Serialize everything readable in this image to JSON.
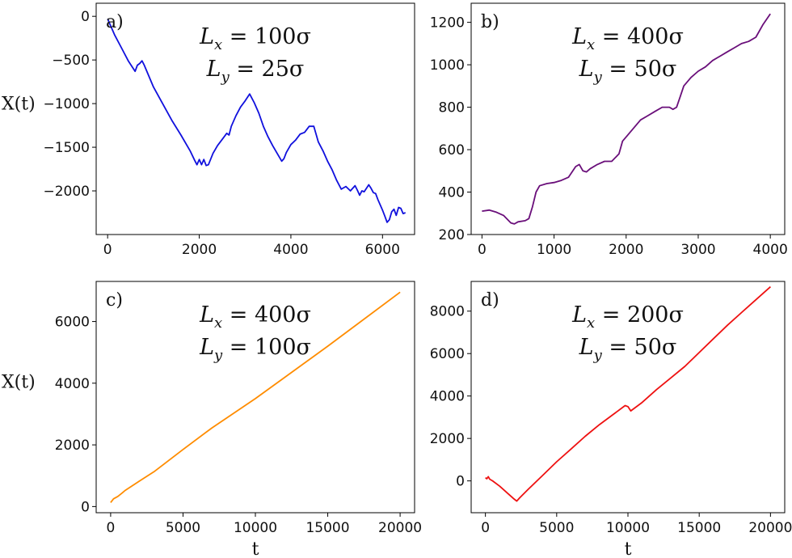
{
  "chart_data": [
    {
      "type": "line",
      "panel_label": "a)",
      "annotation": [
        "Lx = 100σ",
        "Ly = 25σ"
      ],
      "ylabel": "X(t)",
      "xlabel": "",
      "xlim": [
        -250,
        6700
      ],
      "ylim": [
        -2500,
        150
      ],
      "xticks": [
        0,
        2000,
        4000,
        6000
      ],
      "yticks": [
        0,
        -500,
        -1000,
        -1500,
        -2000
      ],
      "grid": false,
      "color": "#1010dd",
      "series": [
        {
          "x": [
            0,
            150,
            300,
            450,
            600,
            650,
            700,
            750,
            800,
            1000,
            1200,
            1400,
            1600,
            1800,
            1900,
            1950,
            2000,
            2050,
            2100,
            2150,
            2200,
            2300,
            2400,
            2500,
            2600,
            2650,
            2700,
            2800,
            2900,
            3000,
            3100,
            3200,
            3300,
            3400,
            3500,
            3600,
            3700,
            3800,
            3850,
            3900,
            4000,
            4100,
            4200,
            4300,
            4400,
            4500,
            4550,
            4600,
            4700,
            4800,
            4900,
            5000,
            5100,
            5200,
            5300,
            5400,
            5450,
            5500,
            5550,
            5600,
            5700,
            5750,
            5800,
            5850,
            5900,
            6000,
            6050,
            6100,
            6150,
            6200,
            6250,
            6300,
            6350,
            6400,
            6450,
            6500
          ],
          "y": [
            -30,
            -210,
            -360,
            -510,
            -630,
            -560,
            -540,
            -510,
            -560,
            -810,
            -1000,
            -1190,
            -1360,
            -1540,
            -1650,
            -1700,
            -1640,
            -1700,
            -1640,
            -1710,
            -1700,
            -1570,
            -1480,
            -1410,
            -1340,
            -1360,
            -1260,
            -1140,
            -1040,
            -970,
            -890,
            -990,
            -1110,
            -1260,
            -1380,
            -1480,
            -1570,
            -1660,
            -1630,
            -1560,
            -1470,
            -1420,
            -1350,
            -1330,
            -1260,
            -1260,
            -1350,
            -1440,
            -1540,
            -1660,
            -1760,
            -1880,
            -1980,
            -1950,
            -2000,
            -1940,
            -1990,
            -2050,
            -2000,
            -2010,
            -1930,
            -1970,
            -2020,
            -2030,
            -2100,
            -2220,
            -2290,
            -2360,
            -2330,
            -2240,
            -2210,
            -2280,
            -2190,
            -2200,
            -2260,
            -2250
          ]
        }
      ]
    },
    {
      "type": "line",
      "panel_label": "b)",
      "annotation": [
        "Lx = 400σ",
        "Ly = 50σ"
      ],
      "ylabel": "",
      "xlabel": "",
      "xlim": [
        -150,
        4200
      ],
      "ylim": [
        200,
        1290
      ],
      "xticks": [
        0,
        1000,
        2000,
        3000,
        4000
      ],
      "yticks": [
        200,
        400,
        600,
        800,
        1000,
        1200
      ],
      "grid": false,
      "color": "#6a0f7a",
      "series": [
        {
          "x": [
            0,
            100,
            200,
            300,
            400,
            450,
            500,
            600,
            650,
            700,
            750,
            800,
            900,
            1000,
            1100,
            1200,
            1300,
            1350,
            1400,
            1450,
            1500,
            1600,
            1700,
            1800,
            1900,
            1950,
            2000,
            2100,
            2200,
            2300,
            2400,
            2500,
            2600,
            2650,
            2700,
            2750,
            2800,
            2900,
            3000,
            3100,
            3200,
            3300,
            3400,
            3500,
            3600,
            3700,
            3800,
            3900,
            4000
          ],
          "y": [
            310,
            315,
            305,
            290,
            255,
            250,
            260,
            265,
            275,
            330,
            400,
            430,
            440,
            445,
            455,
            470,
            520,
            530,
            500,
            495,
            510,
            530,
            545,
            545,
            580,
            640,
            660,
            700,
            740,
            760,
            780,
            800,
            800,
            790,
            800,
            850,
            900,
            940,
            970,
            990,
            1020,
            1040,
            1060,
            1080,
            1100,
            1110,
            1130,
            1190,
            1240
          ]
        }
      ]
    },
    {
      "type": "line",
      "panel_label": "c)",
      "annotation": [
        "Lx = 400σ",
        "Ly = 100σ"
      ],
      "ylabel": "X(t)",
      "xlabel": "t",
      "xlim": [
        -1000,
        21000
      ],
      "ylim": [
        -200,
        7300
      ],
      "xticks": [
        0,
        5000,
        10000,
        15000,
        20000
      ],
      "yticks": [
        0,
        2000,
        4000,
        6000
      ],
      "grid": false,
      "color": "#ff8c00",
      "series": [
        {
          "x": [
            0,
            200,
            500,
            800,
            1000,
            2000,
            3000,
            5000,
            7000,
            10000,
            12000,
            15000,
            17000,
            20000
          ],
          "y": [
            130,
            250,
            330,
            440,
            520,
            830,
            1130,
            1850,
            2550,
            3500,
            4180,
            5200,
            5900,
            6950
          ]
        }
      ]
    },
    {
      "type": "line",
      "panel_label": "d)",
      "annotation": [
        "Lx = 200σ",
        "Ly = 50σ"
      ],
      "ylabel": "",
      "xlabel": "t",
      "xlim": [
        -1000,
        21000
      ],
      "ylim": [
        -1500,
        9400
      ],
      "xticks": [
        0,
        5000,
        10000,
        15000,
        20000
      ],
      "yticks": [
        0,
        2000,
        4000,
        6000,
        8000
      ],
      "grid": false,
      "color": "#ee1111",
      "series": [
        {
          "x": [
            0,
            100,
            200,
            300,
            500,
            1000,
            1500,
            2000,
            2200,
            2400,
            3000,
            4000,
            5000,
            6000,
            7000,
            8000,
            9000,
            9800,
            10000,
            10200,
            11000,
            12000,
            13000,
            14000,
            15000,
            16000,
            17000,
            18000,
            19000,
            20000
          ],
          "y": [
            150,
            100,
            200,
            80,
            0,
            -250,
            -550,
            -850,
            -950,
            -800,
            -400,
            250,
            900,
            1500,
            2100,
            2650,
            3150,
            3550,
            3500,
            3300,
            3700,
            4300,
            4850,
            5400,
            6050,
            6700,
            7350,
            7950,
            8550,
            9150
          ]
        }
      ]
    }
  ]
}
